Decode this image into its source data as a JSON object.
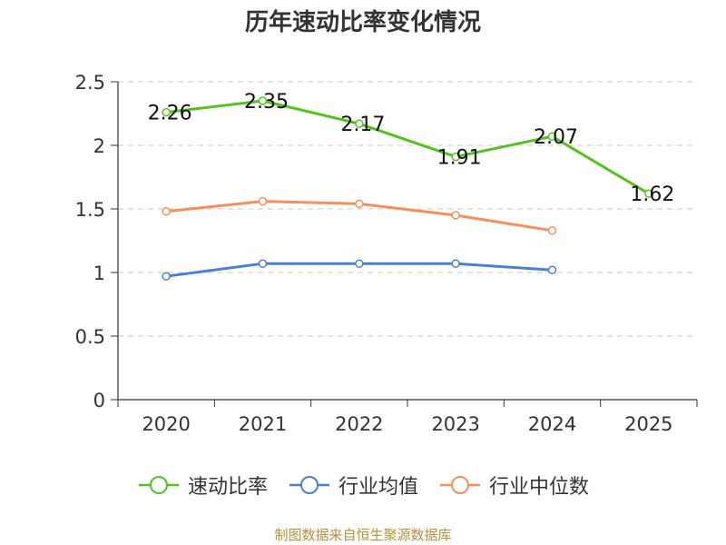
{
  "chart_data": {
    "type": "line",
    "title": "历年速动比率变化情况",
    "categories": [
      "2020",
      "2021",
      "2022",
      "2023",
      "2024",
      "2025"
    ],
    "ylim": [
      0,
      2.5
    ],
    "yticks": [
      "0",
      "0.5",
      "1",
      "1.5",
      "2",
      "2.5"
    ],
    "ytick_values": [
      0,
      0.5,
      1,
      1.5,
      2,
      2.5
    ],
    "grid": true,
    "legend_position": "bottom",
    "series": [
      {
        "name": "速动比率",
        "color": "#52c41a",
        "values": [
          2.26,
          2.35,
          2.17,
          1.91,
          2.07,
          1.62
        ],
        "labels": [
          "2.26",
          "2.35",
          "2.17",
          "1.91",
          "2.07",
          "1.62"
        ],
        "show_labels": true
      },
      {
        "name": "行业均值",
        "color": "#4a7fd8",
        "values": [
          0.97,
          1.07,
          1.07,
          1.07,
          1.02,
          null
        ],
        "show_labels": false
      },
      {
        "name": "行业中位数",
        "color": "#f5905a",
        "values": [
          1.48,
          1.56,
          1.54,
          1.45,
          1.33,
          null
        ],
        "show_labels": false
      }
    ]
  },
  "source_note": "制图数据来自恒生聚源数据库"
}
